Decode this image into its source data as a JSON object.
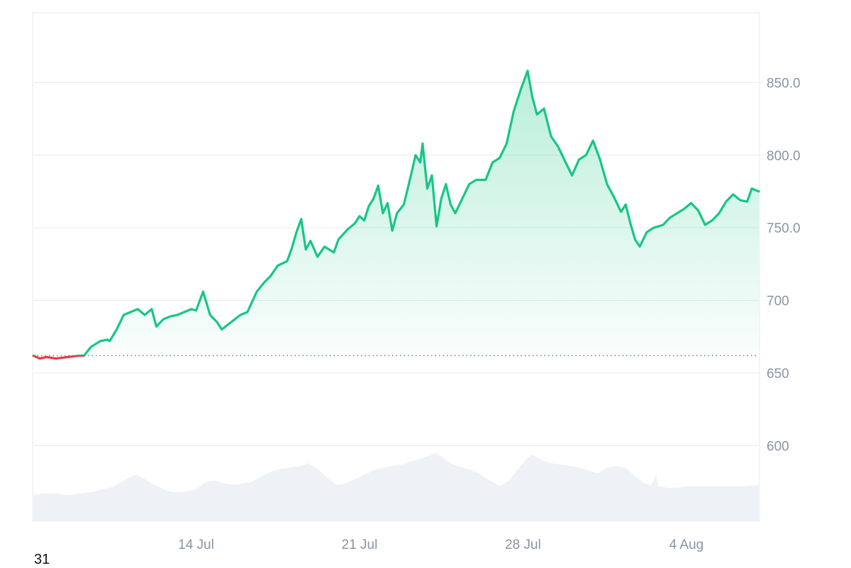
{
  "corner_label": "31",
  "chart_data": {
    "type": "area",
    "xlabel": "",
    "ylabel": "",
    "ylim": [
      548,
      898
    ],
    "y_ticks": [
      "850.0",
      "800.0",
      "750.0",
      "700",
      "650",
      "600"
    ],
    "y_tick_values": [
      850,
      800,
      750,
      700,
      650,
      600
    ],
    "x_ticks": [
      "14 Jul",
      "21 Jul",
      "28 Jul",
      "4 Aug"
    ],
    "x_tick_positions": [
      14,
      21,
      28,
      35
    ],
    "xlim": [
      7.03,
      38.1
    ],
    "baseline": 662,
    "grid": true,
    "colors": {
      "up": "#16c784",
      "down": "#ea3943",
      "volume": "#eef1f5",
      "grid": "#e6e9ee",
      "axis_text": "#8a94a6"
    },
    "series": [
      {
        "values": [
          [
            7.03,
            662
          ],
          [
            7.3,
            660
          ],
          [
            7.6,
            661
          ],
          [
            8.0,
            660
          ],
          [
            8.5,
            661
          ],
          [
            9.0,
            662
          ],
          [
            9.2,
            662
          ],
          [
            9.5,
            668
          ],
          [
            9.9,
            672
          ],
          [
            10.2,
            673
          ],
          [
            10.3,
            672
          ],
          [
            10.6,
            680
          ],
          [
            10.9,
            690
          ],
          [
            11.2,
            692
          ],
          [
            11.5,
            694
          ],
          [
            11.8,
            690
          ],
          [
            12.1,
            694
          ],
          [
            12.3,
            682
          ],
          [
            12.6,
            687
          ],
          [
            12.9,
            689
          ],
          [
            13.2,
            690
          ],
          [
            13.5,
            692
          ],
          [
            13.8,
            694
          ],
          [
            14.0,
            693
          ],
          [
            14.3,
            706
          ],
          [
            14.6,
            690
          ],
          [
            14.9,
            685
          ],
          [
            15.1,
            680
          ],
          [
            15.5,
            685
          ],
          [
            15.9,
            690
          ],
          [
            16.2,
            692
          ],
          [
            16.4,
            699
          ],
          [
            16.6,
            706
          ],
          [
            16.9,
            712
          ],
          [
            17.2,
            717
          ],
          [
            17.5,
            724
          ],
          [
            17.9,
            727
          ],
          [
            18.1,
            736
          ],
          [
            18.3,
            747
          ],
          [
            18.5,
            756
          ],
          [
            18.7,
            735
          ],
          [
            18.9,
            741
          ],
          [
            19.2,
            730
          ],
          [
            19.5,
            737
          ],
          [
            19.9,
            733
          ],
          [
            20.1,
            742
          ],
          [
            20.5,
            749
          ],
          [
            20.8,
            753
          ],
          [
            21.0,
            758
          ],
          [
            21.2,
            755
          ],
          [
            21.4,
            765
          ],
          [
            21.6,
            770
          ],
          [
            21.8,
            779
          ],
          [
            22.0,
            760
          ],
          [
            22.2,
            767
          ],
          [
            22.4,
            748
          ],
          [
            22.6,
            760
          ],
          [
            22.9,
            766
          ],
          [
            23.2,
            786
          ],
          [
            23.4,
            800
          ],
          [
            23.6,
            795
          ],
          [
            23.7,
            808
          ],
          [
            23.9,
            777
          ],
          [
            24.1,
            786
          ],
          [
            24.3,
            751
          ],
          [
            24.5,
            770
          ],
          [
            24.7,
            780
          ],
          [
            24.9,
            766
          ],
          [
            25.1,
            760
          ],
          [
            25.4,
            770
          ],
          [
            25.7,
            780
          ],
          [
            26.0,
            783
          ],
          [
            26.4,
            783
          ],
          [
            26.7,
            795
          ],
          [
            27.0,
            798
          ],
          [
            27.3,
            808
          ],
          [
            27.6,
            830
          ],
          [
            27.9,
            845
          ],
          [
            28.2,
            858
          ],
          [
            28.4,
            840
          ],
          [
            28.6,
            828
          ],
          [
            28.9,
            832
          ],
          [
            29.2,
            813
          ],
          [
            29.5,
            806
          ],
          [
            29.8,
            796
          ],
          [
            30.1,
            786
          ],
          [
            30.4,
            797
          ],
          [
            30.7,
            800
          ],
          [
            31.0,
            810
          ],
          [
            31.3,
            797
          ],
          [
            31.6,
            780
          ],
          [
            31.9,
            771
          ],
          [
            32.2,
            761
          ],
          [
            32.4,
            766
          ],
          [
            32.6,
            753
          ],
          [
            32.8,
            742
          ],
          [
            33.0,
            737
          ],
          [
            33.3,
            747
          ],
          [
            33.6,
            750
          ],
          [
            34.0,
            752
          ],
          [
            34.3,
            757
          ],
          [
            34.6,
            760
          ],
          [
            34.9,
            763
          ],
          [
            35.2,
            767
          ],
          [
            35.5,
            762
          ],
          [
            35.8,
            752
          ],
          [
            36.1,
            755
          ],
          [
            36.4,
            760
          ],
          [
            36.7,
            768
          ],
          [
            37.0,
            773
          ],
          [
            37.3,
            769
          ],
          [
            37.6,
            768
          ],
          [
            37.8,
            777
          ],
          [
            38.1,
            775
          ]
        ]
      },
      {
        "values": [
          [
            7.03,
            566
          ],
          [
            7.5,
            567
          ],
          [
            8.0,
            567
          ],
          [
            8.5,
            566
          ],
          [
            9.0,
            567
          ],
          [
            9.5,
            568
          ],
          [
            10.0,
            570
          ],
          [
            10.5,
            572
          ],
          [
            11.0,
            577
          ],
          [
            11.4,
            580
          ],
          [
            11.8,
            577
          ],
          [
            12.2,
            573
          ],
          [
            12.6,
            570
          ],
          [
            13.0,
            568
          ],
          [
            13.5,
            568
          ],
          [
            14.0,
            570
          ],
          [
            14.4,
            575
          ],
          [
            14.8,
            576
          ],
          [
            15.2,
            574
          ],
          [
            15.6,
            573
          ],
          [
            16.0,
            574
          ],
          [
            16.4,
            575
          ],
          [
            16.8,
            579
          ],
          [
            17.2,
            582
          ],
          [
            17.6,
            584
          ],
          [
            18.0,
            585
          ],
          [
            18.5,
            586
          ],
          [
            18.8,
            588
          ],
          [
            19.2,
            584
          ],
          [
            19.6,
            578
          ],
          [
            20.0,
            573
          ],
          [
            20.4,
            574
          ],
          [
            20.8,
            577
          ],
          [
            21.2,
            580
          ],
          [
            21.6,
            583
          ],
          [
            22.0,
            585
          ],
          [
            22.4,
            586
          ],
          [
            22.8,
            587
          ],
          [
            23.2,
            589
          ],
          [
            23.6,
            591
          ],
          [
            24.0,
            593
          ],
          [
            24.3,
            595
          ],
          [
            24.6,
            591
          ],
          [
            25.0,
            587
          ],
          [
            25.4,
            585
          ],
          [
            25.8,
            583
          ],
          [
            26.2,
            580
          ],
          [
            26.6,
            576
          ],
          [
            27.0,
            572
          ],
          [
            27.4,
            576
          ],
          [
            27.8,
            584
          ],
          [
            28.1,
            590
          ],
          [
            28.4,
            594
          ],
          [
            28.8,
            590
          ],
          [
            29.2,
            588
          ],
          [
            29.6,
            587
          ],
          [
            30.0,
            586
          ],
          [
            30.4,
            585
          ],
          [
            30.8,
            583
          ],
          [
            31.2,
            581
          ],
          [
            31.6,
            585
          ],
          [
            32.0,
            586
          ],
          [
            32.4,
            585
          ],
          [
            32.8,
            579
          ],
          [
            33.2,
            574
          ],
          [
            33.5,
            573
          ],
          [
            33.7,
            580
          ],
          [
            33.8,
            572
          ],
          [
            34.2,
            571
          ],
          [
            34.6,
            571
          ],
          [
            35.0,
            572
          ],
          [
            35.5,
            572
          ],
          [
            36.0,
            572
          ],
          [
            36.5,
            572
          ],
          [
            37.0,
            572
          ],
          [
            37.5,
            572
          ],
          [
            38.1,
            573
          ]
        ]
      }
    ]
  }
}
